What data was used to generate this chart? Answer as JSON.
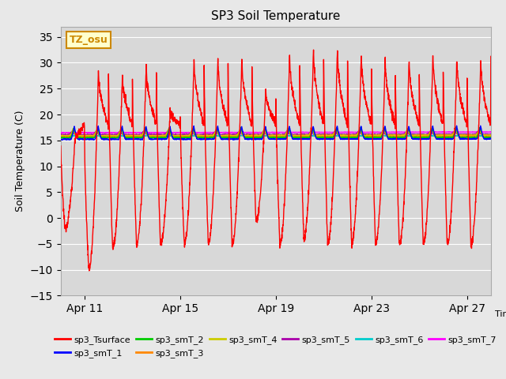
{
  "title": "SP3 Soil Temperature",
  "ylabel": "Soil Temperature (C)",
  "xlabel": "Time",
  "ylim": [
    -15,
    37
  ],
  "yticks": [
    -15,
    -10,
    -5,
    0,
    5,
    10,
    15,
    20,
    25,
    30,
    35
  ],
  "xtick_labels": [
    "Apr 11",
    "Apr 15",
    "Apr 19",
    "Apr 23",
    "Apr 27"
  ],
  "xtick_positions": [
    1,
    5,
    9,
    13,
    17
  ],
  "xlim": [
    0,
    18
  ],
  "fig_bg": "#e8e8e8",
  "plot_bg": "#d8d8d8",
  "annotation_text": "TZ_osu",
  "annotation_color": "#cc8800",
  "annotation_bg": "#ffffcc",
  "series_colors": {
    "sp3_Tsurface": "#ff0000",
    "sp3_smT_1": "#0000ff",
    "sp3_smT_2": "#00cc00",
    "sp3_smT_3": "#ff8800",
    "sp3_smT_4": "#cccc00",
    "sp3_smT_5": "#aa00aa",
    "sp3_smT_6": "#00cccc",
    "sp3_smT_7": "#ff00ff"
  },
  "legend_order": [
    "sp3_Tsurface",
    "sp3_smT_1",
    "sp3_smT_2",
    "sp3_smT_3",
    "sp3_smT_4",
    "sp3_smT_5",
    "sp3_smT_6",
    "sp3_smT_7"
  ]
}
